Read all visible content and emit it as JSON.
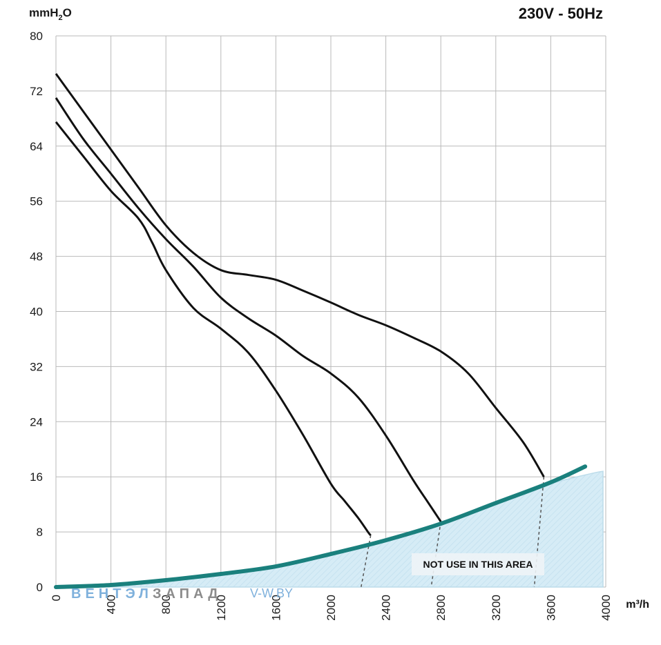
{
  "chart_data": {
    "type": "line",
    "title": "230V - 50Hz",
    "ylabel": {
      "main": "mmH",
      "sub": "2",
      "end": "O"
    },
    "xlabel": "m³/h",
    "xlim": [
      0,
      4000
    ],
    "ylim": [
      0,
      80
    ],
    "x_ticks": [
      0,
      400,
      800,
      1200,
      1600,
      2000,
      2400,
      2800,
      3200,
      3600,
      4000
    ],
    "y_ticks": [
      0,
      8,
      16,
      24,
      32,
      40,
      48,
      56,
      64,
      72,
      80
    ],
    "grid": true,
    "annotation": "NOT USE IN THIS AREA",
    "watermark": {
      "part1": "ВЕНТЭЛ",
      "part2": "ЗАПАД",
      "site": "V-W.BY"
    },
    "colors": {
      "curves": "#111111",
      "system_curve": "#1a807d",
      "area_fill": "#d6ecf6",
      "area_edge": "#bcdcea",
      "grid": "#b9b9b9",
      "wm1": "#7fb1dc",
      "wm2": "#8c8c8c"
    },
    "series": [
      {
        "x": [
          0,
          200,
          400,
          600,
          700,
          800,
          1000,
          1200,
          1400,
          1600,
          1800,
          2000,
          2100,
          2200,
          2270,
          2290
        ],
        "y": [
          67.5,
          62.5,
          57.5,
          53.5,
          50,
          46,
          40.5,
          37.5,
          34,
          28.5,
          22,
          15,
          12.5,
          10,
          8,
          7.5
        ]
      },
      {
        "x": [
          0,
          200,
          400,
          600,
          800,
          1000,
          1200,
          1400,
          1600,
          1800,
          2000,
          2200,
          2400,
          2600,
          2700,
          2750,
          2800
        ],
        "y": [
          71,
          65,
          60,
          55,
          50.5,
          46.5,
          42,
          39,
          36.5,
          33.5,
          31,
          27.5,
          22,
          15.5,
          12.5,
          11,
          9.5
        ]
      },
      {
        "x": [
          0,
          200,
          400,
          600,
          800,
          1000,
          1200,
          1400,
          1600,
          1800,
          2000,
          2200,
          2400,
          2600,
          2800,
          3000,
          3200,
          3400,
          3550
        ],
        "y": [
          74.5,
          69,
          63.5,
          58,
          52.5,
          48.5,
          46,
          45.3,
          44.6,
          43,
          41.3,
          39.5,
          38,
          36.2,
          34.2,
          31,
          26,
          21,
          16
        ]
      }
    ],
    "system_curve": {
      "x": [
        0,
        400,
        800,
        1200,
        1600,
        2000,
        2400,
        2800,
        3200,
        3600,
        3850
      ],
      "y": [
        0,
        0.3,
        1,
        1.9,
        3,
        4.8,
        6.8,
        9.2,
        12.2,
        15.2,
        17.5
      ]
    },
    "area_upper": {
      "x": [
        0,
        400,
        800,
        1200,
        1600,
        2000,
        2400,
        2800,
        3200,
        3600,
        3900,
        3980
      ],
      "y": [
        0,
        0.3,
        1,
        1.9,
        3,
        4.8,
        6.8,
        9.2,
        12.2,
        15,
        16.5,
        16.8
      ]
    },
    "dashed": [
      {
        "x": [
          2290,
          2220
        ],
        "y": [
          7.5,
          0
        ]
      },
      {
        "x": [
          2800,
          2730
        ],
        "y": [
          9.5,
          0
        ]
      },
      {
        "x": [
          3550,
          3480
        ],
        "y": [
          16,
          0
        ]
      }
    ]
  }
}
